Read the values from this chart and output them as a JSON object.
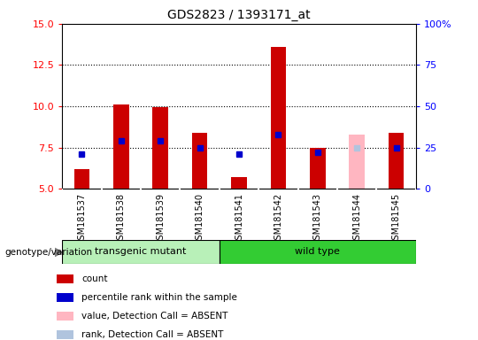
{
  "title": "GDS2823 / 1393171_at",
  "samples": [
    "GSM181537",
    "GSM181538",
    "GSM181539",
    "GSM181540",
    "GSM181541",
    "GSM181542",
    "GSM181543",
    "GSM181544",
    "GSM181545"
  ],
  "count_values": [
    6.2,
    10.1,
    9.95,
    8.4,
    5.7,
    13.6,
    7.5,
    null,
    8.4
  ],
  "rank_values": [
    7.1,
    7.9,
    7.9,
    7.5,
    7.1,
    8.3,
    7.2,
    null,
    7.5
  ],
  "absent_count": [
    null,
    null,
    null,
    null,
    null,
    null,
    null,
    8.3,
    null
  ],
  "absent_rank": [
    null,
    null,
    null,
    null,
    null,
    null,
    null,
    7.5,
    null
  ],
  "ylim_left": [
    5,
    15
  ],
  "ylim_right": [
    0,
    100
  ],
  "yticks_left": [
    5,
    7.5,
    10,
    12.5,
    15
  ],
  "yticks_right": [
    0,
    25,
    50,
    75,
    100
  ],
  "groups": [
    {
      "label": "transgenic mutant",
      "samples": [
        0,
        1,
        2,
        3
      ],
      "color": "#b8f0b8"
    },
    {
      "label": "wild type",
      "samples": [
        4,
        5,
        6,
        7,
        8
      ],
      "color": "#33cc33"
    }
  ],
  "group_label": "genotype/variation",
  "bar_width": 0.4,
  "count_color": "#cc0000",
  "rank_color": "#0000cc",
  "absent_count_color": "#ffb6c1",
  "absent_rank_color": "#b0c4de",
  "baseline": 5.0,
  "hlines": [
    7.5,
    10.0,
    12.5
  ],
  "hline_color": "#000000",
  "sample_bg": "#c8c8c8",
  "plot_bg": "#ffffff",
  "legend_items": [
    {
      "label": "count",
      "color": "#cc0000"
    },
    {
      "label": "percentile rank within the sample",
      "color": "#0000cc"
    },
    {
      "label": "value, Detection Call = ABSENT",
      "color": "#ffb6c1"
    },
    {
      "label": "rank, Detection Call = ABSENT",
      "color": "#b0c4de"
    }
  ]
}
